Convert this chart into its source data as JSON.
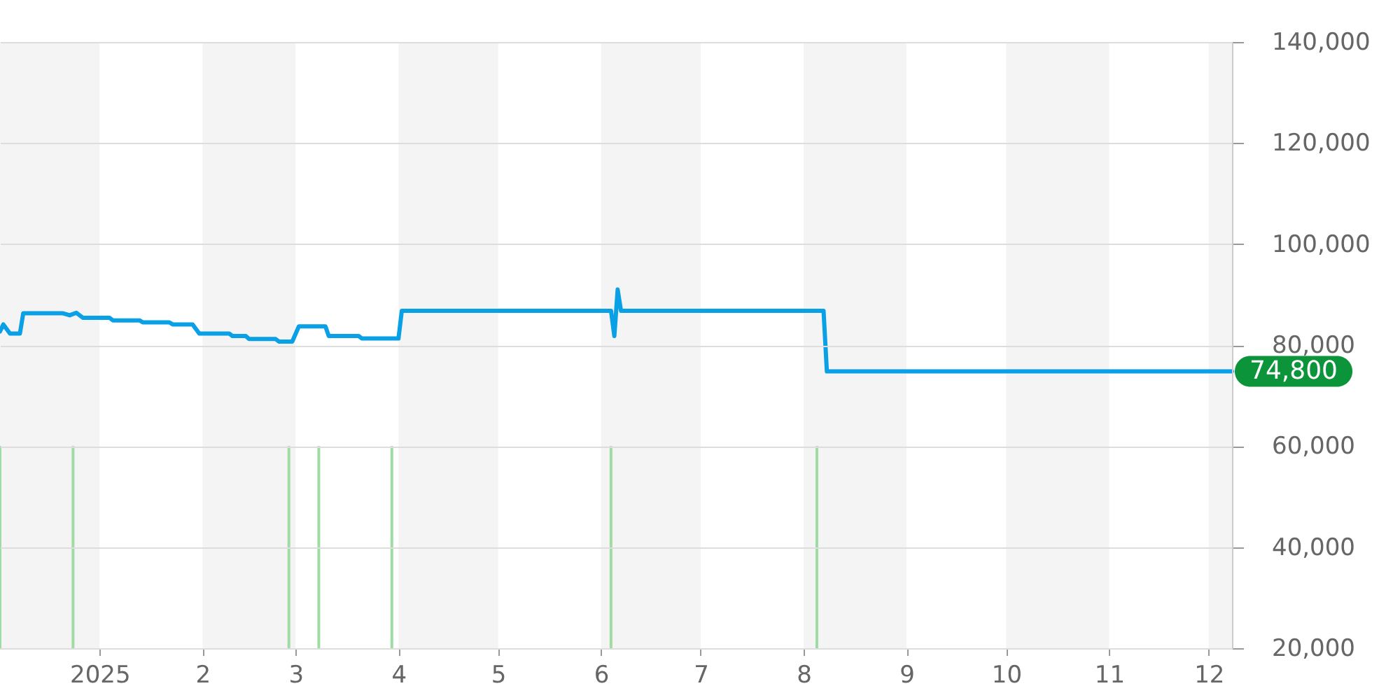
{
  "chart_data": {
    "type": "line",
    "xlim": [
      "2024-12-02",
      "2025-12-08"
    ],
    "ylim": [
      20000,
      140000
    ],
    "xticks": [
      {
        "value": "2025-01-01",
        "label": "2025"
      },
      {
        "value": "2025-02-01",
        "label": "2"
      },
      {
        "value": "2025-03-01",
        "label": "3"
      },
      {
        "value": "2025-04-01",
        "label": "4"
      },
      {
        "value": "2025-05-01",
        "label": "5"
      },
      {
        "value": "2025-06-01",
        "label": "6"
      },
      {
        "value": "2025-07-01",
        "label": "7"
      },
      {
        "value": "2025-08-01",
        "label": "8"
      },
      {
        "value": "2025-09-01",
        "label": "9"
      },
      {
        "value": "2025-10-01",
        "label": "10"
      },
      {
        "value": "2025-11-01",
        "label": "11"
      },
      {
        "value": "2025-12-01",
        "label": "12"
      }
    ],
    "yticks": [
      {
        "value": 20000,
        "label": "20,000"
      },
      {
        "value": 40000,
        "label": "40,000"
      },
      {
        "value": 60000,
        "label": "60,000"
      },
      {
        "value": 80000,
        "label": "80,000"
      },
      {
        "value": 100000,
        "label": "100,000"
      },
      {
        "value": 120000,
        "label": "120,000"
      },
      {
        "value": 140000,
        "label": "140,000"
      }
    ],
    "grid": "y",
    "bands": [
      {
        "axis": "x",
        "from": "2024-12-02",
        "to": "2025-01-01",
        "color": "#f4f4f4"
      },
      {
        "axis": "x",
        "from": "2025-02-01",
        "to": "2025-03-01",
        "color": "#f4f4f4"
      },
      {
        "axis": "x",
        "from": "2025-04-01",
        "to": "2025-05-01",
        "color": "#f4f4f4"
      },
      {
        "axis": "x",
        "from": "2025-06-01",
        "to": "2025-07-01",
        "color": "#f4f4f4"
      },
      {
        "axis": "x",
        "from": "2025-08-01",
        "to": "2025-09-01",
        "color": "#f4f4f4"
      },
      {
        "axis": "x",
        "from": "2025-10-01",
        "to": "2025-11-01",
        "color": "#f4f4f4"
      },
      {
        "axis": "x",
        "from": "2025-12-01",
        "to": "2025-12-08",
        "color": "#f4f4f4"
      }
    ],
    "series": [
      {
        "type": "bar",
        "color": "#9fdca3",
        "x": [
          "2024-12-02",
          "2024-12-24",
          "2025-02-27",
          "2025-03-08",
          "2025-03-30",
          "2025-06-04",
          "2025-08-05"
        ],
        "base": [
          20000,
          20000,
          20000,
          20000,
          20000,
          20000,
          20000
        ],
        "values": [
          40000,
          40000,
          40000,
          40000,
          40000,
          40000,
          40000
        ]
      },
      {
        "color": "#0aa0e6",
        "x": [
          "2024-12-02",
          "2024-12-03",
          "2024-12-05",
          "2024-12-08",
          "2024-12-09",
          "2024-12-21",
          "2024-12-23",
          "2024-12-25",
          "2024-12-27",
          "2025-01-04",
          "2025-01-05",
          "2025-01-13",
          "2025-01-14",
          "2025-01-22",
          "2025-01-23",
          "2025-01-29",
          "2025-01-31",
          "2025-02-09",
          "2025-02-10",
          "2025-02-14",
          "2025-02-15",
          "2025-02-23",
          "2025-02-24",
          "2025-02-28",
          "2025-03-02",
          "2025-03-10",
          "2025-03-11",
          "2025-03-20",
          "2025-03-21",
          "2025-04-01",
          "2025-04-02",
          "2025-06-04",
          "2025-06-05",
          "2025-06-06",
          "2025-06-07",
          "2025-08-07",
          "2025-08-08",
          "2025-12-08"
        ],
        "values": [
          82700,
          84100,
          82300,
          82300,
          86300,
          86300,
          85900,
          86400,
          85400,
          85400,
          84900,
          84900,
          84500,
          84500,
          84100,
          84100,
          82300,
          82300,
          81800,
          81800,
          81200,
          81200,
          80700,
          80700,
          83700,
          83700,
          81800,
          81800,
          81300,
          81300,
          86800,
          86800,
          81800,
          91000,
          86800,
          86800,
          74800,
          74800
        ]
      }
    ],
    "annotations": [
      {
        "text": "74,800",
        "x": "2025-12-08",
        "y": 74800
      }
    ]
  }
}
